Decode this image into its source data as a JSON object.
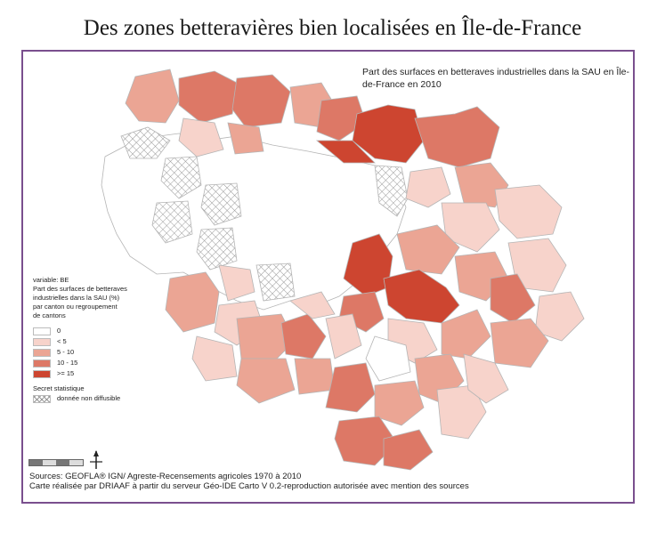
{
  "title": "Des zones betteravières bien localisées en Île-de-France",
  "map_subtitle": "Part des surfaces en betteraves industrielles dans la SAU en Île-de-France en 2010",
  "legend": {
    "lines": [
      "variable: BE",
      "Part des surfaces de betteraves",
      "industrielles dans la SAU (%)",
      "par canton ou regroupement",
      "de cantons"
    ],
    "classes": [
      {
        "label": "0",
        "color": "#ffffff"
      },
      {
        "label": "< 5",
        "color": "#f7d3cb"
      },
      {
        "label": "5 - 10",
        "color": "#eba594"
      },
      {
        "label": "10 - 15",
        "color": "#dd7866"
      },
      {
        "label": ">= 15",
        "color": "#cd4530"
      }
    ],
    "secret_title": "Secret statistique",
    "secret_label": "donnée non diffusible"
  },
  "sources": [
    "Sources: GEOFLA® IGN/ Agreste-Recensements agricoles 1970 à 2010",
    "Carte réalisée par DRIAAF à partir du serveur Géo-IDE Carto V 0.2-reproduction autorisée avec mention des sources"
  ],
  "colors": {
    "frame": "#7a4f8e",
    "zero": "#ffffff",
    "lt5": "#f7d3cb",
    "c5_10": "#eba594",
    "c10_15": "#dd7866",
    "ge15": "#cd4530",
    "border": "#b0b0b0"
  }
}
